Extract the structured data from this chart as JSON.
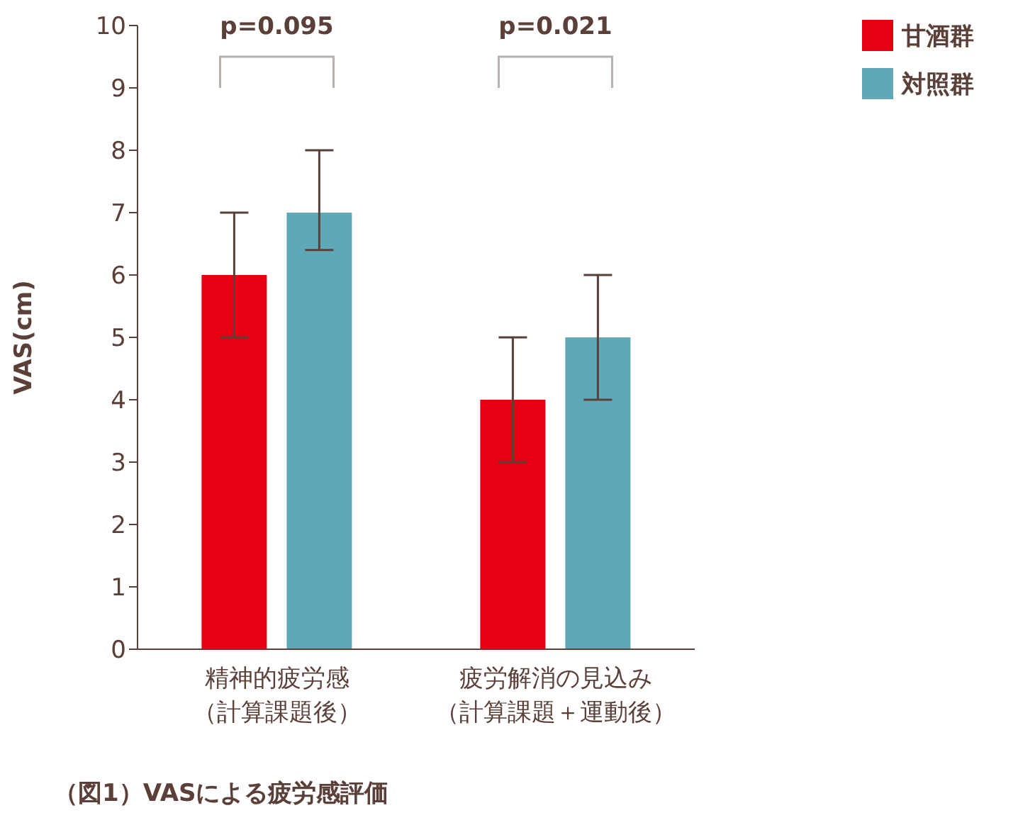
{
  "chart_data": {
    "type": "bar",
    "ylabel": "VAS(cm)",
    "categories": [
      "精神的疲労感（計算課題後）",
      "疲労解消の見込み（計算課題＋運動後）"
    ],
    "series": [
      {
        "name": "甘酒群",
        "color": "#e60012",
        "values": [
          6,
          4
        ],
        "errors": [
          1,
          1
        ]
      },
      {
        "name": "対照群",
        "color": "#5fa8b8",
        "values": [
          7,
          5
        ],
        "errors": [
          [
            6.4,
            8
          ],
          [
            4,
            6
          ]
        ]
      }
    ],
    "ylim": [
      0,
      10
    ],
    "yticks": [
      0,
      1,
      2,
      3,
      4,
      5,
      6,
      7,
      8,
      9,
      10
    ],
    "grid": false,
    "legend": "top right",
    "annotations": [
      "p=0.095",
      "p=0.021",
      "（図1）VASによる疲労感評価"
    ]
  }
}
